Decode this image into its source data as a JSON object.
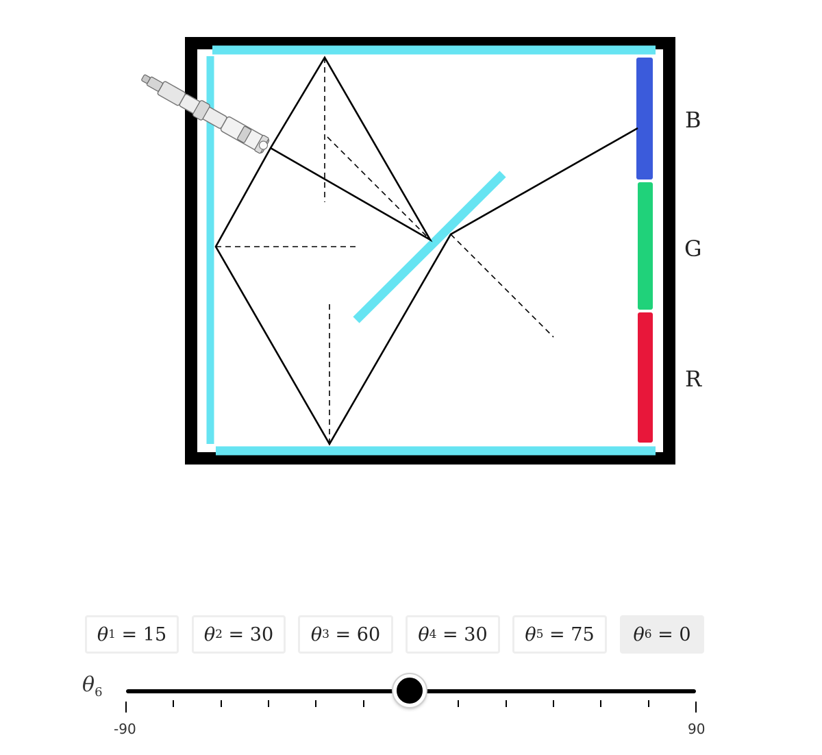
{
  "diagram": {
    "bands": [
      {
        "label": "B",
        "color": "#3b5bdb"
      },
      {
        "label": "G",
        "color": "#20d27a"
      },
      {
        "label": "R",
        "color": "#e8173a"
      }
    ],
    "mirror_color": "#66e4f2",
    "frame_color": "#000000",
    "icons": [
      "flashlight-icon"
    ]
  },
  "angles": [
    {
      "symbol": "θ",
      "sub": "1",
      "value": "15"
    },
    {
      "symbol": "θ",
      "sub": "2",
      "value": "30"
    },
    {
      "symbol": "θ",
      "sub": "3",
      "value": "60"
    },
    {
      "symbol": "θ",
      "sub": "4",
      "value": "30"
    },
    {
      "symbol": "θ",
      "sub": "5",
      "value": "75"
    },
    {
      "symbol": "θ",
      "sub": "6",
      "value": "0"
    }
  ],
  "slider": {
    "symbol": "θ",
    "sub": "6",
    "min": -90,
    "max": 90,
    "value": 0,
    "min_label": "-90",
    "max_label": "90"
  }
}
